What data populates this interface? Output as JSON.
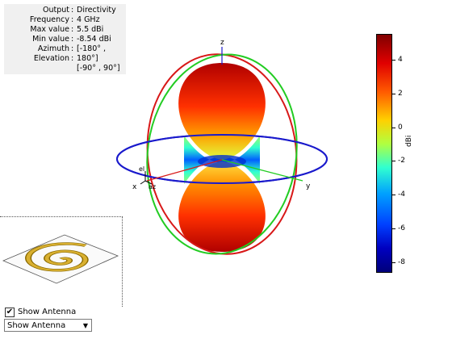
{
  "info": [
    {
      "label": "Output",
      "value": "Directivity"
    },
    {
      "label": "Frequency",
      "value": "4 GHz"
    },
    {
      "label": "Max value",
      "value": "5.5 dBi"
    },
    {
      "label": "Min value",
      "value": "-8.54 dBi"
    },
    {
      "label": "Azimuth",
      "value": "[-180° ,"
    },
    {
      "label": "Elevation",
      "value": "180°]"
    },
    {
      "label": "",
      "value": "[-90° , 90°]"
    }
  ],
  "axes": {
    "x": "x",
    "y": "y",
    "z": "z",
    "el": "el",
    "az": "az"
  },
  "colorbar": {
    "unit": "dBi",
    "ticks": [
      "4",
      "2",
      "0",
      "-2",
      "-4",
      "-6",
      "-8"
    ]
  },
  "colors": {
    "azimuth_circle": "#1a1acc",
    "elevation_circle_xz": "#d81818",
    "elevation_circle_yz": "#22cc22"
  },
  "antenna_toggle": {
    "label": "Show Antenna",
    "checked": true
  },
  "antenna_select": {
    "value": "Show Antenna"
  }
}
